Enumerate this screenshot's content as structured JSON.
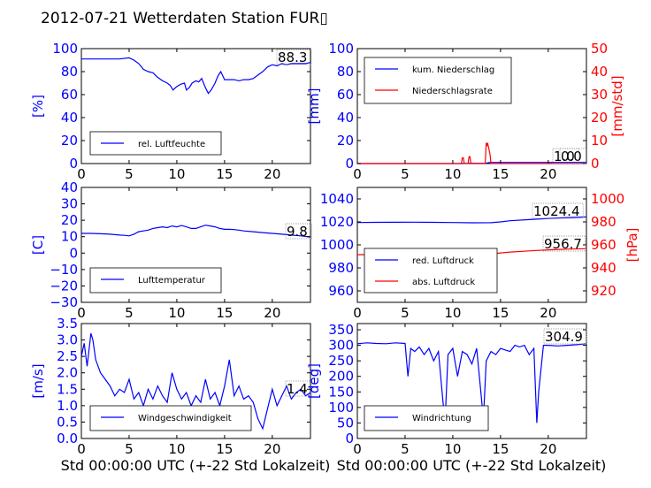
{
  "title": "2012-07-21 Wetterdaten Station FUR\u0000",
  "title_display": "2012-07-21 Wetterdaten Station FUR▯",
  "colors": {
    "left_axis": "#0000ff",
    "right_axis": "#ff0000",
    "bg": "#ffffff",
    "frame": "#000000"
  },
  "xlabel": "Std 00:00:00 UTC (+-22 Std Lokalzeit)",
  "chart_data": [
    {
      "id": "humidity",
      "type": "line",
      "ylabel": "[%]",
      "xlim": [
        0,
        24
      ],
      "ylim": [
        0,
        100
      ],
      "xticks": [
        "0",
        "5",
        "10",
        "15",
        "20"
      ],
      "xtick_values": [
        0,
        5,
        10,
        15,
        20
      ],
      "yticks": [
        "0",
        "20",
        "40",
        "60",
        "80",
        "100"
      ],
      "ytick_values": [
        0,
        20,
        40,
        60,
        80,
        100
      ],
      "annotation": "88.3",
      "legend": {
        "placement": "lower-left",
        "entries": [
          {
            "label": "rel. Luftfeuchte",
            "color": "#0000ff"
          }
        ]
      },
      "series": [
        {
          "name": "rel. Luftfeuchte",
          "color": "#0000ff",
          "axis": "left",
          "x": [
            0,
            1,
            2,
            3,
            4,
            5,
            5.5,
            6,
            6.5,
            7,
            7.5,
            8,
            8.5,
            9,
            9.3,
            9.6,
            10,
            10.4,
            10.8,
            11,
            11.3,
            11.6,
            12,
            12.3,
            12.6,
            13,
            13.3,
            13.6,
            14,
            14.3,
            14.6,
            15,
            15.5,
            16,
            16.5,
            17,
            17.5,
            18,
            18.5,
            19,
            19.5,
            20,
            20.5,
            21,
            21.5,
            22,
            22.5,
            23,
            23.5,
            24
          ],
          "y": [
            91,
            91,
            91,
            91,
            91,
            92,
            90,
            87,
            82,
            80,
            79,
            75,
            72,
            70,
            68,
            64,
            67,
            69,
            70,
            64,
            66,
            70,
            72,
            71,
            74,
            66,
            61,
            64,
            70,
            76,
            80,
            73,
            73,
            73,
            72,
            73,
            73,
            74,
            77,
            80,
            84,
            86,
            85,
            87,
            86,
            87,
            87,
            87,
            87,
            88
          ]
        }
      ]
    },
    {
      "id": "precip",
      "type": "line",
      "ylabel": "[mm]",
      "ylabel_right": "[mm/std]",
      "xlim": [
        0,
        24
      ],
      "ylim": [
        0,
        100
      ],
      "ylim_right": [
        0,
        50
      ],
      "xticks": [
        "0",
        "5",
        "10",
        "15",
        "20"
      ],
      "xtick_values": [
        0,
        5,
        10,
        15,
        20
      ],
      "yticks": [
        "0",
        "20",
        "40",
        "60",
        "80",
        "100"
      ],
      "ytick_values": [
        0,
        20,
        40,
        60,
        80,
        100
      ],
      "yticks_right": [
        "0",
        "10",
        "20",
        "30",
        "40",
        "50"
      ],
      "ytick_values_right": [
        0,
        10,
        20,
        30,
        40,
        50
      ],
      "annotation": "1.0",
      "annotation2": "0.0",
      "legend": {
        "placement": "upper-left",
        "entries": [
          {
            "label": "kum. Niederschlag",
            "color": "#0000ff"
          },
          {
            "label": "Niederschlagsrate",
            "color": "#ff0000"
          }
        ]
      },
      "series": [
        {
          "name": "kum. Niederschlag",
          "color": "#0000ff",
          "axis": "left",
          "x": [
            0,
            11,
            11.1,
            11.7,
            11.8,
            13.5,
            13.6,
            13.8,
            14,
            24
          ],
          "y": [
            0,
            0,
            0.1,
            0.1,
            0.2,
            0.2,
            0.5,
            0.9,
            1.0,
            1.0
          ]
        },
        {
          "name": "Niederschlagsrate",
          "color": "#ff0000",
          "axis": "right",
          "x": [
            0,
            10.9,
            11,
            11.1,
            11.2,
            11.6,
            11.7,
            11.8,
            11.9,
            13.4,
            13.5,
            13.6,
            13.65,
            13.7,
            13.75,
            13.8,
            13.85,
            13.9,
            14,
            24
          ],
          "y": [
            0,
            0,
            2.5,
            2.5,
            0,
            0,
            3,
            3,
            0,
            0,
            9,
            8,
            9,
            8,
            7,
            6,
            5,
            4,
            0,
            0
          ]
        }
      ]
    },
    {
      "id": "temperature",
      "type": "line",
      "ylabel": "[C]",
      "xlim": [
        0,
        24
      ],
      "ylim": [
        -30,
        40
      ],
      "xticks": [
        "0",
        "5",
        "10",
        "15",
        "20"
      ],
      "xtick_values": [
        0,
        5,
        10,
        15,
        20
      ],
      "yticks": [
        "−30",
        "−20",
        "−10",
        "0",
        "10",
        "20",
        "30",
        "40"
      ],
      "ytick_values": [
        -30,
        -20,
        -10,
        0,
        10,
        20,
        30,
        40
      ],
      "annotation": "9.8",
      "legend": {
        "placement": "lower-left",
        "entries": [
          {
            "label": "Lufttemperatur",
            "color": "#0000ff"
          }
        ]
      },
      "series": [
        {
          "name": "Lufttemperatur",
          "color": "#0000ff",
          "axis": "left",
          "x": [
            0,
            1,
            2,
            3,
            4,
            4.5,
            5,
            5.5,
            6,
            6.5,
            7,
            7.5,
            8,
            8.5,
            9,
            9.5,
            10,
            10.5,
            11,
            11.5,
            12,
            12.5,
            13,
            13.5,
            14,
            14.5,
            15,
            15.5,
            16,
            16.5,
            17,
            18,
            19,
            20,
            21,
            22,
            23,
            24
          ],
          "y": [
            12,
            12,
            11.8,
            11.5,
            11,
            10.8,
            10.5,
            11.5,
            13,
            13.5,
            14,
            15,
            15.5,
            16,
            15.5,
            16.5,
            16,
            16.8,
            16,
            15,
            15,
            16,
            17,
            16.5,
            16,
            15,
            14.5,
            14.5,
            14.3,
            14,
            13.5,
            13,
            12.5,
            12,
            11.5,
            11,
            10.5,
            9.8
          ]
        }
      ]
    },
    {
      "id": "pressure",
      "type": "line",
      "ylabel": "[hPa]",
      "xlim": [
        0,
        24
      ],
      "ylim": [
        950,
        1050
      ],
      "ylim_right": [
        910,
        1010
      ],
      "xticks": [
        "0",
        "5",
        "10",
        "15",
        "20"
      ],
      "xtick_values": [
        0,
        5,
        10,
        15,
        20
      ],
      "yticks": [
        "960",
        "980",
        "1000",
        "1020",
        "1040"
      ],
      "ytick_values": [
        960,
        980,
        1000,
        1020,
        1040
      ],
      "yticks_right": [
        "920",
        "940",
        "960",
        "980",
        "1000"
      ],
      "ytick_values_right": [
        920,
        940,
        960,
        980,
        1000
      ],
      "annotation": "1024.4",
      "annotation2": "956.7",
      "legend": {
        "placement": "lower-left",
        "entries": [
          {
            "label": "red. Luftdruck",
            "color": "#0000ff"
          },
          {
            "label": "abs. Luftdruck",
            "color": "#ff0000"
          }
        ]
      },
      "series": [
        {
          "name": "red. Luftdruck",
          "color": "#0000ff",
          "axis": "left",
          "x": [
            0,
            2,
            4,
            6,
            8,
            10,
            12,
            14,
            15,
            16,
            18,
            20,
            22,
            24
          ],
          "y": [
            1019.5,
            1019.6,
            1019.7,
            1019.8,
            1019.6,
            1019.5,
            1019.2,
            1019.3,
            1020,
            1021,
            1022,
            1023,
            1023.8,
            1024.4
          ]
        },
        {
          "name": "abs. Luftdruck",
          "color": "#ff0000",
          "axis": "right",
          "x": [
            0,
            2,
            4,
            6,
            8,
            10,
            12,
            14,
            15,
            16,
            18,
            20,
            22,
            24
          ],
          "y": [
            951.5,
            951.6,
            951.7,
            951.8,
            951.8,
            951.8,
            951.9,
            952.1,
            953,
            953.8,
            954.8,
            955.7,
            956.3,
            956.7
          ]
        }
      ]
    },
    {
      "id": "wind",
      "type": "line",
      "ylabel": "[m/s]",
      "xlim": [
        0,
        24
      ],
      "ylim": [
        0,
        3.5
      ],
      "xticks": [
        "0",
        "5",
        "10",
        "15",
        "20"
      ],
      "xtick_values": [
        0,
        5,
        10,
        15,
        20
      ],
      "yticks": [
        "0.0",
        "0.5",
        "1.0",
        "1.5",
        "2.0",
        "2.5",
        "3.0",
        "3.5"
      ],
      "ytick_values": [
        0,
        0.5,
        1,
        1.5,
        2,
        2.5,
        3,
        3.5
      ],
      "annotation": "1.4",
      "legend": {
        "placement": "lower-left",
        "entries": [
          {
            "label": "Windgeschwindigkeit",
            "color": "#0000ff"
          }
        ]
      },
      "series": [
        {
          "name": "Windgeschwindigkeit",
          "color": "#0000ff",
          "axis": "left",
          "x": [
            0,
            0.3,
            0.6,
            1,
            1.2,
            1.5,
            2,
            2.5,
            3,
            3.5,
            4,
            4.5,
            5,
            5.5,
            6,
            6.5,
            7,
            7.5,
            8,
            8.5,
            9,
            9.5,
            10,
            10.5,
            11,
            11.5,
            12,
            12.5,
            13,
            13.5,
            14,
            14.5,
            15,
            15.5,
            16,
            16.5,
            17,
            17.5,
            18,
            18.5,
            19,
            19.5,
            20,
            20.5,
            21,
            21.5,
            22,
            22.5,
            23,
            23.5,
            24
          ],
          "y": [
            2.5,
            2.9,
            2.2,
            3.2,
            3.0,
            2.4,
            2.0,
            1.8,
            1.6,
            1.3,
            1.5,
            1.4,
            1.8,
            1.2,
            1.4,
            1.0,
            1.5,
            1.2,
            1.6,
            1.3,
            1.1,
            2.0,
            1.5,
            1.2,
            1.4,
            1.0,
            1.3,
            1.1,
            1.8,
            1.2,
            1.4,
            1.0,
            1.6,
            2.4,
            1.3,
            1.6,
            1.2,
            1.3,
            1.1,
            0.6,
            0.3,
            0.9,
            1.5,
            1.0,
            1.3,
            1.6,
            1.2,
            1.4,
            1.5,
            1.3,
            1.4
          ]
        }
      ]
    },
    {
      "id": "winddir",
      "type": "line",
      "ylabel": "[deg]",
      "xlim": [
        0,
        24
      ],
      "ylim": [
        0,
        370
      ],
      "xticks": [
        "0",
        "5",
        "10",
        "15",
        "20"
      ],
      "xtick_values": [
        0,
        5,
        10,
        15,
        20
      ],
      "yticks": [
        "0",
        "50",
        "100",
        "150",
        "200",
        "250",
        "300",
        "350"
      ],
      "ytick_values": [
        0,
        50,
        100,
        150,
        200,
        250,
        300,
        350
      ],
      "annotation": "304.9",
      "legend": {
        "placement": "lower-left",
        "entries": [
          {
            "label": "Windrichtung",
            "color": "#0000ff"
          }
        ]
      },
      "series": [
        {
          "name": "Windrichtung",
          "color": "#0000ff",
          "axis": "left",
          "x": [
            0,
            1,
            2,
            3,
            4,
            5,
            5.3,
            5.6,
            6,
            6.5,
            7,
            7.5,
            8,
            8.5,
            9,
            9.2,
            9.5,
            10,
            10.5,
            11,
            11.5,
            12,
            12.5,
            13,
            13.2,
            13.5,
            14,
            14.5,
            15,
            15.5,
            16,
            16.5,
            17,
            17.5,
            18,
            18.5,
            18.8,
            19,
            19.5,
            20,
            21,
            22,
            23,
            24
          ],
          "y": [
            305,
            308,
            306,
            305,
            308,
            306,
            200,
            290,
            280,
            295,
            270,
            290,
            250,
            280,
            110,
            60,
            270,
            290,
            200,
            280,
            270,
            240,
            290,
            130,
            60,
            250,
            280,
            270,
            290,
            285,
            280,
            300,
            295,
            300,
            270,
            290,
            50,
            150,
            300,
            300,
            298,
            300,
            302,
            305
          ]
        }
      ]
    }
  ]
}
